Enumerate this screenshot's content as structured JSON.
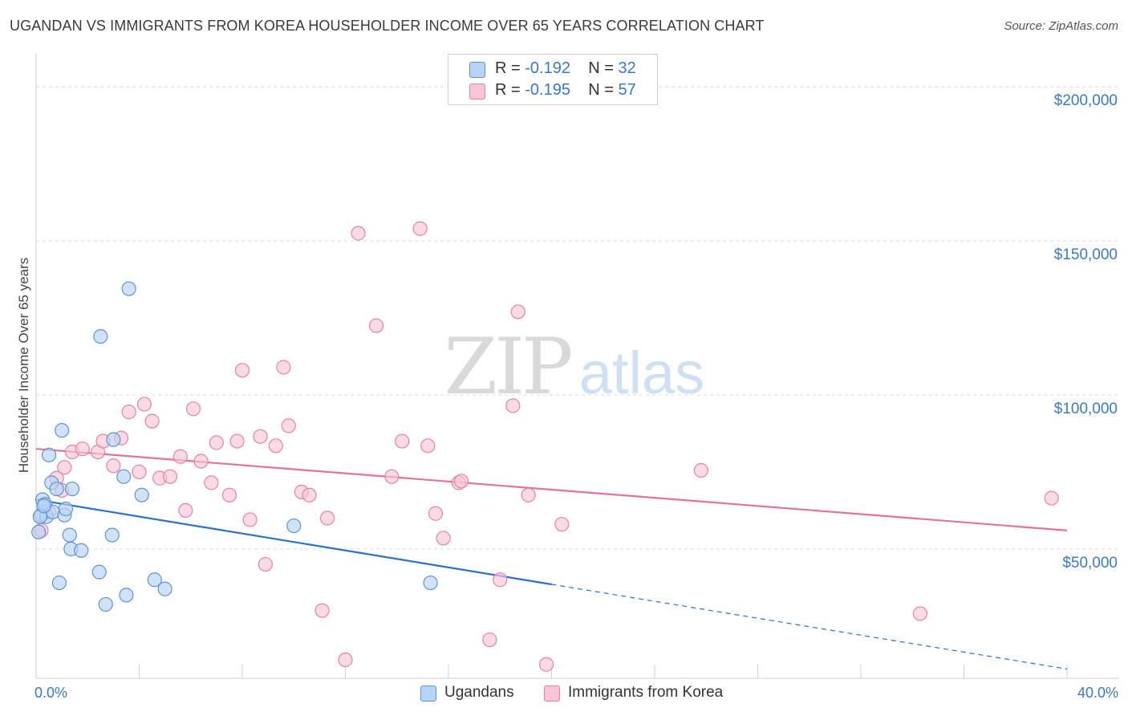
{
  "title": "UGANDAN VS IMMIGRANTS FROM KOREA HOUSEHOLDER INCOME OVER 65 YEARS CORRELATION CHART",
  "source": "Source: ZipAtlas.com",
  "watermark": {
    "zip": "ZIP",
    "atlas": "atlas"
  },
  "legend": {
    "r_label": "R =",
    "n_label": "N =",
    "rows": [
      {
        "r": "-0.192",
        "n": "32"
      },
      {
        "r": "-0.195",
        "n": "57"
      }
    ]
  },
  "colors": {
    "blue_fill": "#b8d3f5",
    "blue_stroke": "#5b95d8",
    "blue_line": "#2b6fd1",
    "pink_fill": "#f8c6d6",
    "pink_stroke": "#e8839f",
    "pink_line": "#e8709a",
    "tick_text": "#3a78c9",
    "grid": "#dedede"
  },
  "chart_data": {
    "type": "scatter",
    "title": "UGANDAN VS IMMIGRANTS FROM KOREA HOUSEHOLDER INCOME OVER 65 YEARS CORRELATION CHART",
    "xlabel": "",
    "ylabel": "Householder Income Over 65 years",
    "xlim": [
      0,
      40
    ],
    "ylim": [
      8000,
      210000
    ],
    "x_ticks": [
      {
        "value": 0,
        "label": "0.0%"
      },
      {
        "value": 40,
        "label": "40.0%"
      }
    ],
    "y_ticks": [
      {
        "value": 50000,
        "label": "$50,000"
      },
      {
        "value": 100000,
        "label": "$100,000"
      },
      {
        "value": 150000,
        "label": "$150,000"
      },
      {
        "value": 200000,
        "label": "$200,000"
      }
    ],
    "grid": true,
    "legend_position": "bottom",
    "series": [
      {
        "name": "Ugandans",
        "color": "#5b95d8",
        "points": [
          [
            0.1,
            55500
          ],
          [
            0.2,
            61000
          ],
          [
            0.25,
            66000
          ],
          [
            0.35,
            64500
          ],
          [
            0.4,
            60500
          ],
          [
            0.5,
            80500
          ],
          [
            0.6,
            71500
          ],
          [
            0.65,
            62000
          ],
          [
            0.8,
            69500
          ],
          [
            0.9,
            39000
          ],
          [
            1.0,
            88500
          ],
          [
            1.1,
            61000
          ],
          [
            1.15,
            63000
          ],
          [
            1.3,
            54500
          ],
          [
            1.35,
            50000
          ],
          [
            1.4,
            69500
          ],
          [
            1.75,
            49500
          ],
          [
            2.5,
            119000
          ],
          [
            2.45,
            42500
          ],
          [
            2.7,
            32000
          ],
          [
            2.95,
            54500
          ],
          [
            3.0,
            85500
          ],
          [
            3.4,
            73500
          ],
          [
            3.5,
            35000
          ],
          [
            3.6,
            134500
          ],
          [
            4.1,
            67500
          ],
          [
            4.6,
            40000
          ],
          [
            5.0,
            37000
          ],
          [
            10.0,
            57500
          ],
          [
            15.3,
            39000
          ],
          [
            0.15,
            60500
          ],
          [
            0.3,
            64000
          ]
        ],
        "trend": {
          "x0": 0,
          "y0": 66000,
          "x1": 20,
          "y1": 38500,
          "dash_to_x": 40,
          "dash_to_y": 11000
        }
      },
      {
        "name": "Immigrants from Korea",
        "color": "#e8839f",
        "points": [
          [
            0.2,
            56000
          ],
          [
            0.8,
            73000
          ],
          [
            1.0,
            69000
          ],
          [
            1.1,
            76500
          ],
          [
            1.4,
            81500
          ],
          [
            1.8,
            82500
          ],
          [
            2.4,
            81500
          ],
          [
            2.6,
            85000
          ],
          [
            3.0,
            77000
          ],
          [
            3.3,
            86000
          ],
          [
            3.6,
            94500
          ],
          [
            4.0,
            75000
          ],
          [
            4.2,
            97000
          ],
          [
            4.5,
            91500
          ],
          [
            4.8,
            73000
          ],
          [
            5.2,
            73500
          ],
          [
            5.6,
            80000
          ],
          [
            5.8,
            62500
          ],
          [
            6.1,
            95500
          ],
          [
            6.4,
            78500
          ],
          [
            6.8,
            71500
          ],
          [
            7.0,
            84500
          ],
          [
            7.5,
            67500
          ],
          [
            7.8,
            85000
          ],
          [
            8.0,
            108000
          ],
          [
            8.3,
            59500
          ],
          [
            8.7,
            86500
          ],
          [
            8.9,
            45000
          ],
          [
            9.3,
            83500
          ],
          [
            9.6,
            109000
          ],
          [
            9.8,
            90000
          ],
          [
            10.3,
            68500
          ],
          [
            10.6,
            67500
          ],
          [
            11.1,
            30000
          ],
          [
            11.3,
            60000
          ],
          [
            12.0,
            14000
          ],
          [
            12.5,
            152500
          ],
          [
            13.2,
            122500
          ],
          [
            13.8,
            73500
          ],
          [
            14.2,
            85000
          ],
          [
            14.9,
            154000
          ],
          [
            15.2,
            83500
          ],
          [
            15.5,
            61500
          ],
          [
            15.8,
            53500
          ],
          [
            16.4,
            71500
          ],
          [
            16.5,
            72000
          ],
          [
            17.6,
            20500
          ],
          [
            18.0,
            40000
          ],
          [
            18.5,
            96500
          ],
          [
            18.7,
            127000
          ],
          [
            19.1,
            67500
          ],
          [
            19.8,
            12500
          ],
          [
            20.4,
            58000
          ],
          [
            25.8,
            75500
          ],
          [
            34.3,
            29000
          ],
          [
            39.4,
            66500
          ],
          [
            0.5,
            62000
          ]
        ],
        "trend": {
          "x0": 0,
          "y0": 82500,
          "x1": 40,
          "y1": 56000
        }
      }
    ]
  }
}
